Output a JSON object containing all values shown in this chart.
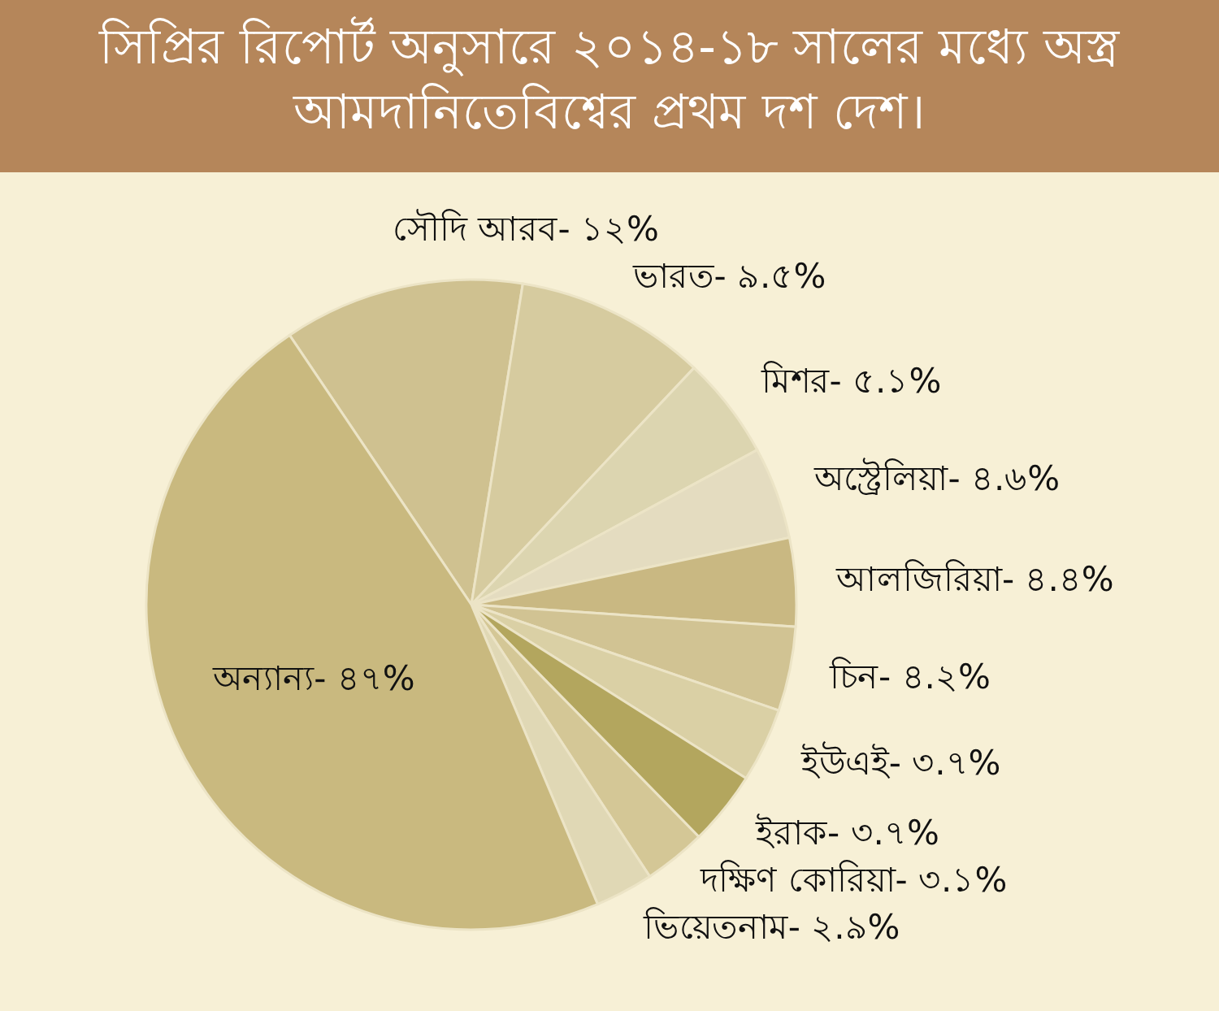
{
  "chart_data": {
    "type": "pie",
    "title": "সিপ্রির রিপোর্ট অনুসারে ২০১৪-১৮ সালের মধ্যে অস্ত্র আমদানিতেবিশ্বের প্রথম দশ দেশ।",
    "categories": [
      "সৌদি আরব",
      "ভারত",
      "মিশর",
      "অস্ট্রেলিয়া",
      "আলজিরিয়া",
      "চিন",
      "ইউএই",
      "ইরাক",
      "দক্ষিণ কোরিয়া",
      "ভিয়েতনাম",
      "অন্যান্য"
    ],
    "values": [
      12,
      9.5,
      5.1,
      4.6,
      4.4,
      4.2,
      3.7,
      3.7,
      3.1,
      2.9,
      47
    ],
    "value_labels": [
      "১২%",
      "৯.৫%",
      "৫.১%",
      "৪.৬%",
      "৪.৪%",
      "৪.২%",
      "৩.৭%",
      "৩.৭%",
      "৩.১%",
      "২.৯%",
      "৪৭%"
    ],
    "colors": [
      "#cfc190",
      "#d6cb9f",
      "#dcd5b0",
      "#e4dcc0",
      "#c9b882",
      "#d1c393",
      "#dad0a5",
      "#b3a65e",
      "#d4c796",
      "#e0d8b5",
      "#c9b97f"
    ]
  }
}
